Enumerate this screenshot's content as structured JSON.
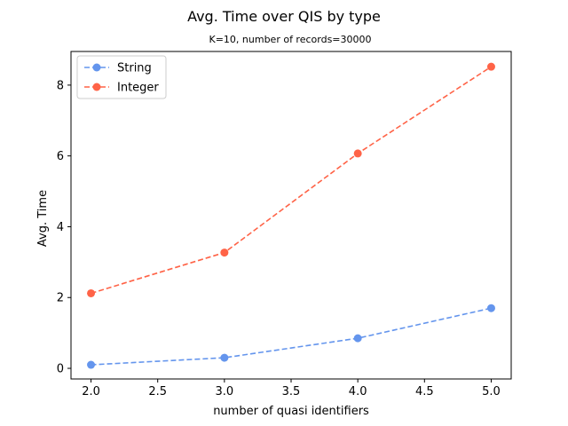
{
  "chart_data": {
    "type": "line",
    "title": "Avg. Time over QIS by type",
    "subtitle": "K=10, number of records=30000",
    "xlabel": "number of quasi identifiers",
    "ylabel": "Avg. Time",
    "x": [
      2,
      3,
      4,
      5
    ],
    "xlim": [
      1.85,
      5.15
    ],
    "ylim": [
      -0.3,
      8.95
    ],
    "xticks": [
      2.0,
      2.5,
      3.0,
      3.5,
      4.0,
      4.5,
      5.0
    ],
    "xtick_labels": [
      "2.0",
      "2.5",
      "3.0",
      "3.5",
      "4.0",
      "4.5",
      "5.0"
    ],
    "yticks": [
      0,
      2,
      4,
      6,
      8
    ],
    "ytick_labels": [
      "0",
      "2",
      "4",
      "6",
      "8"
    ],
    "grid": false,
    "legend_position": "top-left",
    "line_style": "dashed",
    "marker": "circle",
    "series": [
      {
        "name": "String",
        "color": "#6495ED",
        "values": [
          0.1,
          0.3,
          0.85,
          1.7
        ]
      },
      {
        "name": "Integer",
        "color": "#FF6347",
        "values": [
          2.12,
          3.27,
          6.07,
          8.52
        ]
      }
    ]
  }
}
